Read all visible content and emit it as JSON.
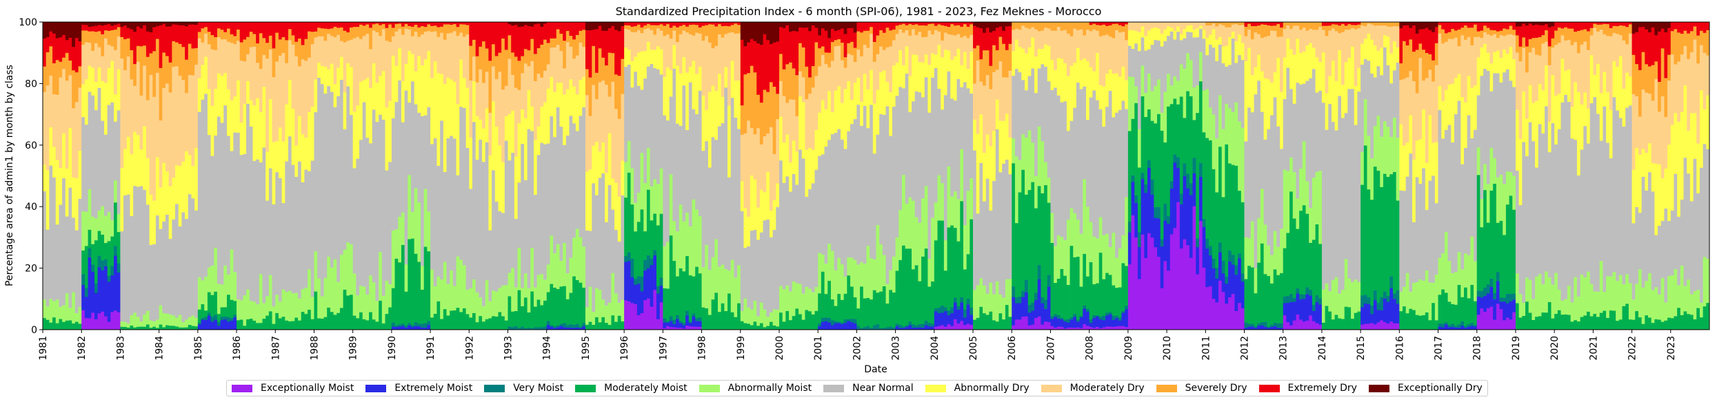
{
  "chart_data": {
    "type": "bar",
    "stacked": true,
    "title": "Standardized Precipitation Index - 6 month (SPI-06), 1981 - 2023, Fez Meknes - Morocco",
    "xlabel": "Date",
    "ylabel": "Percentage area of admin1 by month by class",
    "ylim": [
      0,
      100
    ],
    "yticks": [
      0,
      20,
      40,
      60,
      80,
      100
    ],
    "xticks": [
      "1981",
      "1982",
      "1983",
      "1984",
      "1985",
      "1986",
      "1987",
      "1988",
      "1989",
      "1990",
      "1991",
      "1992",
      "1993",
      "1994",
      "1995",
      "1996",
      "1997",
      "1998",
      "1999",
      "2000",
      "2001",
      "2002",
      "2003",
      "2004",
      "2005",
      "2006",
      "2007",
      "2008",
      "2009",
      "2010",
      "2011",
      "2012",
      "2013",
      "2014",
      "2015",
      "2016",
      "2017",
      "2018",
      "2019",
      "2020",
      "2021",
      "2022",
      "2023"
    ],
    "xrange": [
      "1981-01",
      "2023-12"
    ],
    "grid": false,
    "legend_position": "bottom-center",
    "classes": [
      {
        "name": "Exceptionally Moist",
        "color": "#a020f0"
      },
      {
        "name": "Extremely Moist",
        "color": "#2a2ae6"
      },
      {
        "name": "Very Moist",
        "color": "#007f7f"
      },
      {
        "name": "Moderately Moist",
        "color": "#00b04f"
      },
      {
        "name": "Abnormally Moist",
        "color": "#a6f86a"
      },
      {
        "name": "Near Normal",
        "color": "#bebebe"
      },
      {
        "name": "Abnormally Dry",
        "color": "#ffff4d"
      },
      {
        "name": "Moderately Dry",
        "color": "#ffd28a"
      },
      {
        "name": "Severely Dry",
        "color": "#ffaa33"
      },
      {
        "name": "Extremely Dry",
        "color": "#ee0010"
      },
      {
        "name": "Exceptionally Dry",
        "color": "#6e0000"
      }
    ],
    "series_note_values_per_year": "Each year: approximate average percentage area per class (Exceptionally Moist … Exceptionally Dry), used as monthly profile",
    "yearly_profile": [
      {
        "year": 1981,
        "values": [
          0,
          0,
          0,
          3,
          6,
          35,
          15,
          20,
          8,
          8,
          5
        ]
      },
      {
        "year": 1982,
        "values": [
          5,
          12,
          3,
          10,
          10,
          30,
          12,
          10,
          5,
          2,
          1
        ]
      },
      {
        "year": 1983,
        "values": [
          0,
          0,
          0,
          1,
          3,
          35,
          18,
          25,
          10,
          6,
          2
        ]
      },
      {
        "year": 1984,
        "values": [
          0,
          0,
          0,
          1,
          4,
          30,
          20,
          25,
          10,
          9,
          1
        ]
      },
      {
        "year": 1985,
        "values": [
          0,
          3,
          1,
          5,
          10,
          50,
          12,
          12,
          4,
          3,
          0
        ]
      },
      {
        "year": 1986,
        "values": [
          0,
          0,
          0,
          3,
          8,
          45,
          15,
          18,
          6,
          5,
          0
        ]
      },
      {
        "year": 1987,
        "values": [
          0,
          0,
          0,
          4,
          8,
          45,
          15,
          18,
          6,
          4,
          0
        ]
      },
      {
        "year": 1988,
        "values": [
          0,
          0,
          0,
          8,
          12,
          55,
          10,
          10,
          3,
          2,
          0
        ]
      },
      {
        "year": 1989,
        "values": [
          0,
          0,
          0,
          5,
          10,
          50,
          15,
          15,
          4,
          1,
          0
        ]
      },
      {
        "year": 1990,
        "values": [
          0,
          1,
          1,
          18,
          15,
          40,
          12,
          10,
          2,
          1,
          0
        ]
      },
      {
        "year": 1991,
        "values": [
          0,
          0,
          0,
          6,
          12,
          45,
          18,
          15,
          3,
          1,
          0
        ]
      },
      {
        "year": 1992,
        "values": [
          0,
          0,
          0,
          4,
          8,
          40,
          15,
          15,
          10,
          8,
          0
        ]
      },
      {
        "year": 1993,
        "values": [
          0,
          0,
          1,
          8,
          10,
          35,
          15,
          15,
          8,
          7,
          1
        ]
      },
      {
        "year": 1994,
        "values": [
          0,
          1,
          1,
          12,
          12,
          40,
          12,
          12,
          6,
          4,
          0
        ]
      },
      {
        "year": 1995,
        "values": [
          0,
          0,
          0,
          3,
          8,
          30,
          15,
          20,
          12,
          10,
          2
        ]
      },
      {
        "year": 1996,
        "values": [
          8,
          10,
          3,
          20,
          12,
          30,
          8,
          6,
          2,
          1,
          0
        ]
      },
      {
        "year": 1997,
        "values": [
          1,
          2,
          1,
          15,
          15,
          40,
          12,
          10,
          3,
          1,
          0
        ]
      },
      {
        "year": 1998,
        "values": [
          0,
          0,
          0,
          8,
          12,
          45,
          15,
          15,
          4,
          1,
          0
        ]
      },
      {
        "year": 1999,
        "values": [
          0,
          0,
          0,
          2,
          5,
          25,
          12,
          20,
          15,
          15,
          6
        ]
      },
      {
        "year": 2000,
        "values": [
          0,
          0,
          0,
          5,
          8,
          35,
          15,
          15,
          10,
          10,
          2
        ]
      },
      {
        "year": 2001,
        "values": [
          0,
          2,
          1,
          10,
          10,
          40,
          12,
          12,
          5,
          5,
          3
        ]
      },
      {
        "year": 2002,
        "values": [
          0,
          0,
          1,
          10,
          12,
          45,
          12,
          12,
          5,
          3,
          0
        ]
      },
      {
        "year": 2003,
        "values": [
          0,
          1,
          1,
          20,
          18,
          35,
          12,
          9,
          3,
          1,
          0
        ]
      },
      {
        "year": 2004,
        "values": [
          2,
          4,
          2,
          20,
          15,
          35,
          10,
          8,
          3,
          1,
          0
        ]
      },
      {
        "year": 2005,
        "values": [
          0,
          0,
          0,
          5,
          10,
          35,
          15,
          18,
          8,
          7,
          2
        ]
      },
      {
        "year": 2006,
        "values": [
          3,
          8,
          3,
          30,
          15,
          25,
          8,
          6,
          2,
          0,
          0
        ]
      },
      {
        "year": 2007,
        "values": [
          1,
          3,
          1,
          15,
          15,
          40,
          12,
          10,
          3,
          0,
          0
        ]
      },
      {
        "year": 2008,
        "values": [
          1,
          3,
          1,
          15,
          12,
          40,
          12,
          12,
          3,
          1,
          0
        ]
      },
      {
        "year": 2009,
        "values": [
          25,
          15,
          3,
          25,
          10,
          15,
          4,
          3,
          0,
          0,
          0
        ]
      },
      {
        "year": 2010,
        "values": [
          30,
          15,
          4,
          25,
          10,
          12,
          2,
          2,
          0,
          0,
          0
        ]
      },
      {
        "year": 2011,
        "values": [
          12,
          10,
          3,
          30,
          15,
          20,
          5,
          4,
          1,
          0,
          0
        ]
      },
      {
        "year": 2012,
        "values": [
          0,
          1,
          1,
          15,
          12,
          40,
          15,
          12,
          3,
          1,
          0
        ]
      },
      {
        "year": 2013,
        "values": [
          3,
          6,
          2,
          25,
          15,
          30,
          10,
          7,
          2,
          0,
          0
        ]
      },
      {
        "year": 2014,
        "values": [
          0,
          0,
          0,
          5,
          10,
          55,
          15,
          12,
          2,
          1,
          0
        ]
      },
      {
        "year": 2015,
        "values": [
          2,
          6,
          3,
          35,
          15,
          25,
          8,
          5,
          1,
          0,
          0
        ]
      },
      {
        "year": 2016,
        "values": [
          0,
          0,
          0,
          5,
          10,
          35,
          15,
          18,
          8,
          7,
          2
        ]
      },
      {
        "year": 2017,
        "values": [
          0,
          1,
          1,
          10,
          12,
          40,
          15,
          15,
          4,
          2,
          0
        ]
      },
      {
        "year": 2018,
        "values": [
          5,
          5,
          2,
          25,
          15,
          30,
          8,
          6,
          2,
          2,
          0
        ]
      },
      {
        "year": 2019,
        "values": [
          0,
          0,
          0,
          5,
          10,
          45,
          15,
          15,
          5,
          4,
          1
        ]
      },
      {
        "year": 2020,
        "values": [
          0,
          0,
          0,
          4,
          10,
          50,
          15,
          15,
          4,
          2,
          0
        ]
      },
      {
        "year": 2021,
        "values": [
          0,
          0,
          0,
          5,
          12,
          50,
          15,
          14,
          3,
          1,
          0
        ]
      },
      {
        "year": 2022,
        "values": [
          0,
          0,
          0,
          4,
          10,
          30,
          15,
          18,
          10,
          10,
          3
        ]
      },
      {
        "year": 2023,
        "values": [
          0,
          0,
          0,
          5,
          10,
          35,
          20,
          20,
          7,
          3,
          0
        ]
      }
    ]
  }
}
